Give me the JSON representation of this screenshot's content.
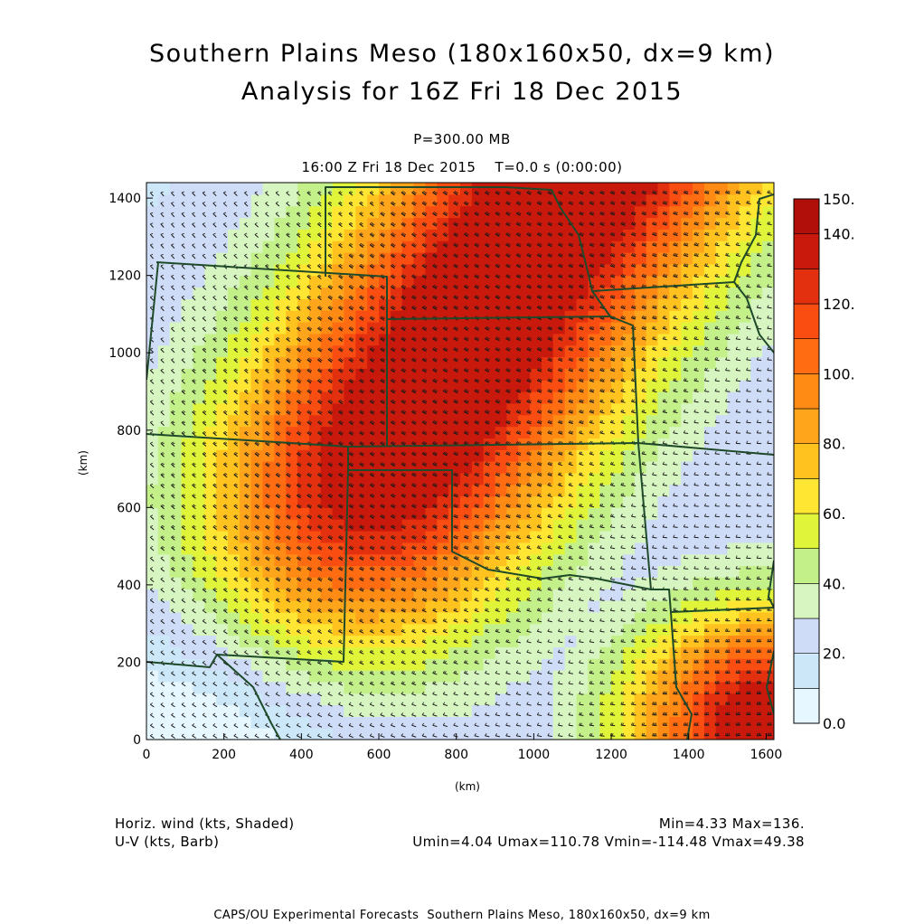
{
  "title_line1": "Southern Plains Meso (180x160x50, dx=9 km)",
  "title_line2": "Analysis for 16Z Fri 18 Dec 2015",
  "level": "P=300.00 MB",
  "time_line": "16:00 Z Fri 18 Dec 2015    T=0.0 s (0:00:00)",
  "footer": {
    "shaded_label": "Horiz. wind (kts, Shaded)",
    "barb_label": "U-V (kts, Barb)",
    "minmax": "Min=4.33 Max=136.",
    "uv_minmax": "Umin=4.04 Umax=110.78 Vmin=-114.48 Vmax=49.38",
    "credit": "CAPS/OU Experimental Forecasts  Southern Plains Meso, 180x160x50, dx=9 km"
  },
  "chart_data": {
    "type": "heatmap",
    "xlabel": "(km)",
    "ylabel": "(km)",
    "xlim": [
      0,
      1620
    ],
    "ylim": [
      0,
      1440
    ],
    "x_ticks": [
      "0",
      "200",
      "400",
      "600",
      "800",
      "1000",
      "1200",
      "1400",
      "1600"
    ],
    "y_ticks": [
      "0",
      "200",
      "400",
      "600",
      "800",
      "1000",
      "1200",
      "1400"
    ],
    "field": "Horizontal wind speed (kts)",
    "min": 4.33,
    "max": 136,
    "colorbar": {
      "labels": [
        "0.0",
        "20.",
        "40.",
        "60.",
        "80.",
        "100.",
        "120.",
        "140.",
        "150."
      ],
      "bounds": [
        0,
        10,
        20,
        30,
        40,
        50,
        60,
        70,
        80,
        90,
        100,
        110,
        120,
        130,
        140,
        150
      ],
      "colors": [
        "#e6f7ff",
        "#cce8f8",
        "#cfdcf7",
        "#d6f5c0",
        "#c4f08a",
        "#e0f53a",
        "#ffe632",
        "#ffc21e",
        "#ffa51b",
        "#ff8b14",
        "#ff6c12",
        "#f94d12",
        "#e3300f",
        "#c9190d",
        "#b1100a"
      ]
    },
    "wind_max_center_km": [
      1000,
      1300
    ],
    "wind_min_center_km": [
      200,
      60
    ],
    "barbs": "U-V wind barbs on model grid",
    "map_overlay": "US state boundaries (Southern Plains)"
  }
}
